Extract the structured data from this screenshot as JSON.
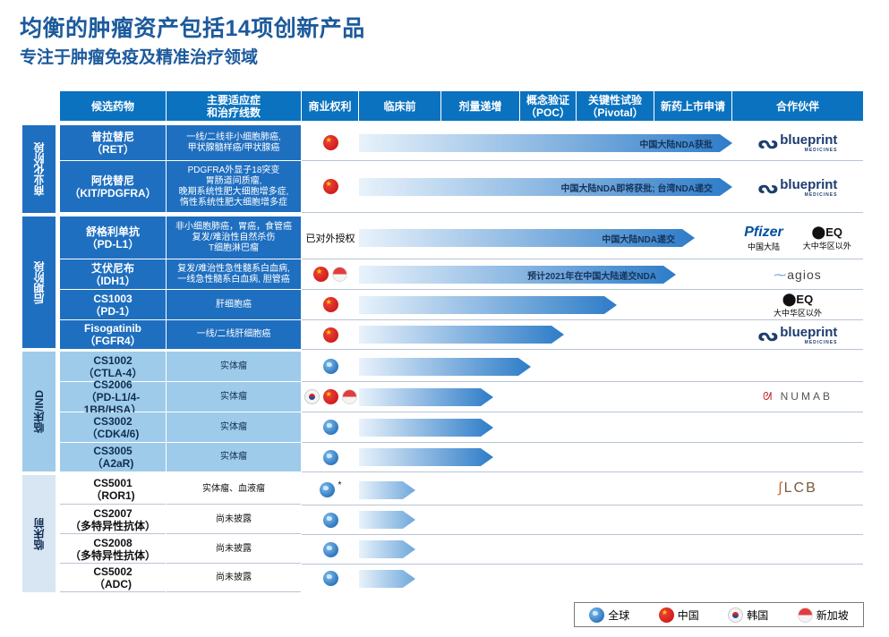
{
  "title": "均衡的肿瘤资产包括14项创新产品",
  "subtitle": "专注于肿瘤免疫及精准治疗领域",
  "headers": {
    "drug": "候选药物",
    "indication": "主要适应症\n和治疗线数",
    "rights": "商业权利",
    "preclinical": "临床前",
    "dose": "剂量递增",
    "poc": "概念验证\n（POC）",
    "pivotal": "关键性试验\n（Pivotal）",
    "nda": "新药上市申请",
    "partner": "合作伙伴"
  },
  "stages": [
    {
      "label": "商业化阶段"
    },
    {
      "label": "后期阶段"
    },
    {
      "label": "临床/IND"
    },
    {
      "label": "临床前"
    }
  ],
  "rows": [
    {
      "name": "普拉替尼",
      "code": "（RET）",
      "indication": "一线/二线非小细胞肺癌,\n甲状腺髓样癌/甲状腺癌",
      "rights_text": "",
      "bar_label": "中国大陆NDA获批",
      "progress": 1.0
    },
    {
      "name": "阿伐替尼",
      "code": "（KIT/PDGFRA）",
      "indication": "PDGFRA外显子18突变\n胃肠道间质瘤,\n晚期系统性肥大细胞增多症,\n惰性系统性肥大细胞增多症",
      "rights_text": "",
      "bar_label": "中国大陆NDA即将获批; 台湾NDA递交",
      "progress": 1.0
    },
    {
      "name": "舒格利单抗",
      "code": "（PD-L1）",
      "indication": "非小细胞肺癌，胃癌，食管癌\n复发/难治性自然杀伤\nT细胞淋巴瘤",
      "rights_text": "已对外授权",
      "bar_label": "中国大陆NDA递交",
      "progress": 0.9
    },
    {
      "name": "艾伏尼布",
      "code": "（IDH1）",
      "indication": "复发/难治性急性髓系白血病,\n一线急性髓系白血病, 胆管癌",
      "rights_text": "",
      "bar_label": "预计2021年在中国大陆递交NDA",
      "progress": 0.85
    },
    {
      "name": "CS1003",
      "code": "（PD-1）",
      "indication": "肝细胞癌",
      "rights_text": "",
      "bar_label": "",
      "progress": 0.69
    },
    {
      "name": "Fisogatinib",
      "code": "（FGFR4）",
      "indication": "一线/二线肝细胞癌",
      "rights_text": "",
      "bar_label": "",
      "progress": 0.55
    },
    {
      "name": "CS1002",
      "code": "（CTLA-4）",
      "indication": "实体瘤",
      "rights_text": "",
      "bar_label": "",
      "progress": 0.46
    },
    {
      "name": "CS2006",
      "code": "（PD-L1/4-1BB/HSA）",
      "indication": "实体瘤",
      "rights_text": "",
      "bar_label": "",
      "progress": 0.36
    },
    {
      "name": "CS3002",
      "code": "（CDK4/6)",
      "indication": "实体瘤",
      "rights_text": "",
      "bar_label": "",
      "progress": 0.36
    },
    {
      "name": "CS3005",
      "code": "（A2aR)",
      "indication": "实体瘤",
      "rights_text": "",
      "bar_label": "",
      "progress": 0.36
    },
    {
      "name": "CS5001",
      "code": "（ROR1)",
      "indication": "实体瘤、血液瘤",
      "rights_text": "*",
      "bar_label": "",
      "progress": 0.15
    },
    {
      "name": "CS2007",
      "code": "（多特异性抗体）",
      "indication": "尚未披露",
      "rights_text": "",
      "bar_label": "",
      "progress": 0.15
    },
    {
      "name": "CS2008",
      "code": "（多特异性抗体）",
      "indication": "尚未披露",
      "rights_text": "",
      "bar_label": "",
      "progress": 0.15
    },
    {
      "name": "CS5002",
      "code": "（ADC)",
      "indication": "尚未披露",
      "rights_text": "",
      "bar_label": "",
      "progress": 0.15
    }
  ],
  "partners": {
    "bp1": "blueprint",
    "bp1_sub": "MEDICINES",
    "bp2": "blueprint",
    "bp2_sub": "MEDICINES",
    "pfizer": "Pfizer",
    "pfizer_region": "中国大陆",
    "eq1": "EQ",
    "eq1_region": "大中华区以外",
    "agios": "agios",
    "eq2": "EQ",
    "eq2_region": "大中华区以外",
    "bp3": "blueprint",
    "bp3_sub": "MEDICINES",
    "numab": "NUMAB",
    "lcb": "LCB"
  },
  "legend": {
    "global": "全球",
    "china": "中国",
    "korea": "韩国",
    "singapore": "新加坡"
  },
  "colors": {
    "header_blue": "#0a72bf",
    "title_blue": "#1c5a9c",
    "stage_dark": "#1f6fc0",
    "stage_light": "#9ecbea",
    "stage_pale": "#d8e6f3"
  }
}
